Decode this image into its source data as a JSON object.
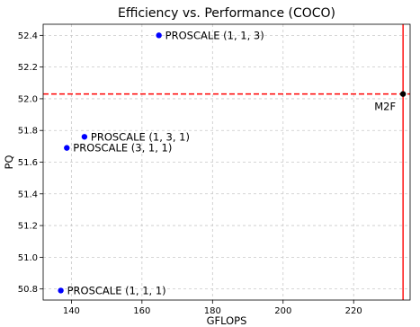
{
  "chart_data": {
    "type": "scatter",
    "title": "Efficiency vs. Performance (COCO)",
    "xlabel": "GFLOPS",
    "ylabel": "PQ",
    "xlim": [
      132,
      236
    ],
    "ylim": [
      50.73,
      52.47
    ],
    "xticks": [
      140,
      160,
      180,
      200,
      220
    ],
    "yticks": [
      50.8,
      51.0,
      51.2,
      51.4,
      51.6,
      51.8,
      52.0,
      52.2,
      52.4
    ],
    "ytick_labels": [
      "50.8",
      "51.0",
      "51.2",
      "51.4",
      "51.6",
      "51.8",
      "52.0",
      "52.2",
      "52.4"
    ],
    "grid": true,
    "points": [
      {
        "label": "PROSCALE (1, 1, 3)",
        "x": 164.8,
        "y": 52.4,
        "color": "#0000ff"
      },
      {
        "label": "PROSCALE (1, 3, 1)",
        "x": 143.7,
        "y": 51.76,
        "color": "#0000ff"
      },
      {
        "label": "PROSCALE (3, 1, 1)",
        "x": 138.7,
        "y": 51.69,
        "color": "#0000ff"
      },
      {
        "label": "PROSCALE (1, 1, 1)",
        "x": 137.0,
        "y": 50.79,
        "color": "#0000ff"
      },
      {
        "label": "M2F",
        "x": 234.0,
        "y": 52.03,
        "color": "#000000"
      }
    ],
    "reference_lines": {
      "horizontal": {
        "y": 52.03,
        "color": "#ff0000",
        "style": "dashed"
      },
      "vertical": {
        "x": 234.0,
        "color": "#ff0000",
        "style": "solid"
      }
    }
  }
}
